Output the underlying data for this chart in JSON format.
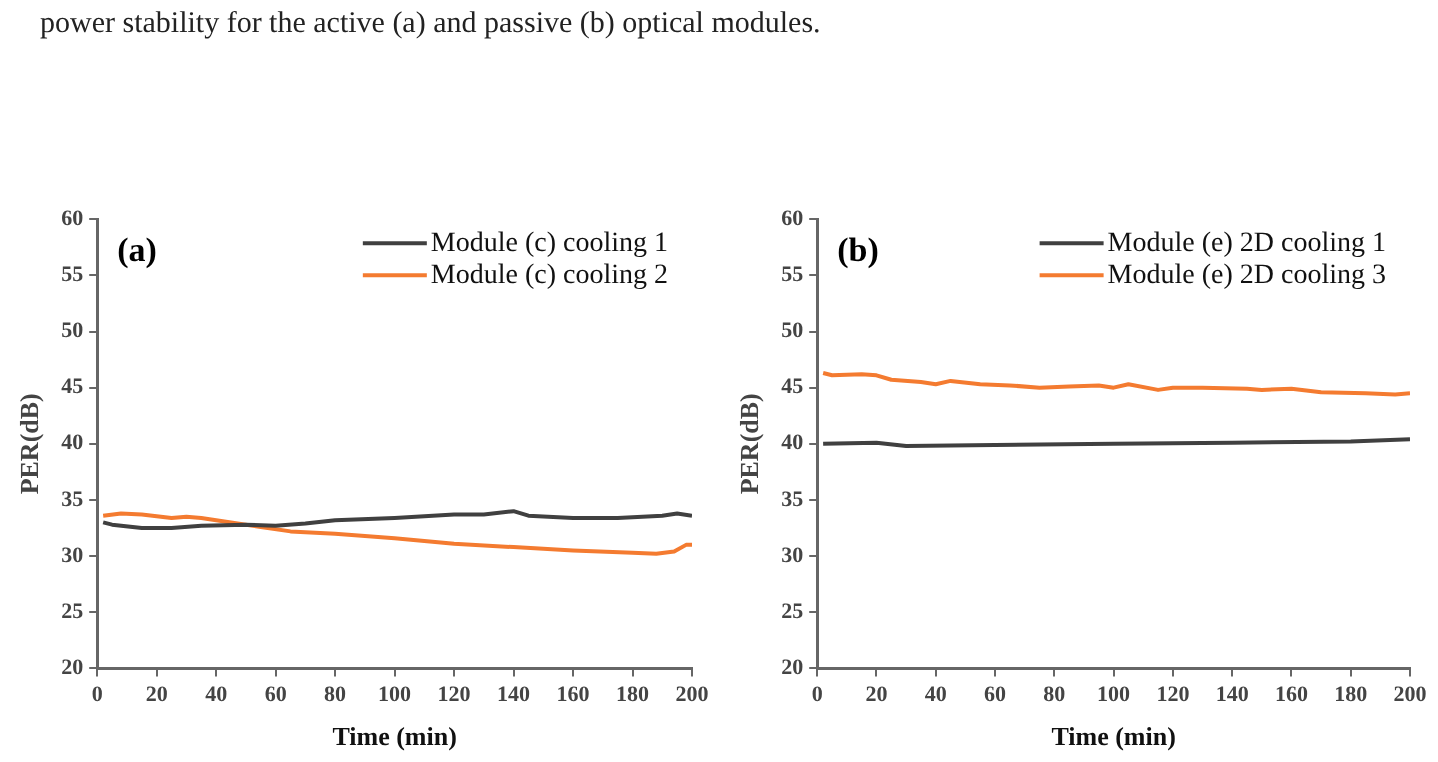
{
  "chart_data": [
    {
      "type": "line",
      "title": "(a)",
      "xlabel": "Time (min)",
      "ylabel": "PER(dB)",
      "annotations": [
        "power stability for the active (a) and passive (b) optical modules."
      ],
      "xlim": [
        0,
        200
      ],
      "xticks": [
        0,
        20,
        40,
        60,
        80,
        100,
        120,
        140,
        160,
        180,
        200
      ],
      "ylim": [
        20,
        60
      ],
      "yticks": [
        20,
        25,
        30,
        35,
        40,
        45,
        50,
        55,
        60
      ],
      "grid": false,
      "legend": "top right",
      "marker": "none",
      "line_style": "solid",
      "series": [
        {
          "name": "Module (c) cooling 1",
          "color": "#404040",
          "x": [
            2,
            5,
            15,
            25,
            35,
            50,
            60,
            70,
            80,
            100,
            120,
            130,
            140,
            145,
            160,
            175,
            190,
            195,
            200
          ],
          "values": [
            33,
            32.8,
            32.5,
            32.5,
            32.7,
            32.8,
            32.7,
            32.9,
            33.2,
            33.4,
            33.7,
            33.7,
            34,
            33.6,
            33.4,
            33.4,
            33.6,
            33.8,
            33.6
          ]
        },
        {
          "name": "Module (c) cooling 2",
          "color": "#f47b30",
          "x": [
            2,
            8,
            15,
            25,
            30,
            35,
            45,
            55,
            65,
            80,
            100,
            120,
            140,
            160,
            180,
            188,
            194,
            198,
            200
          ],
          "values": [
            33.6,
            33.8,
            33.7,
            33.4,
            33.5,
            33.4,
            33,
            32.6,
            32.2,
            32,
            31.6,
            31.1,
            30.8,
            30.5,
            30.3,
            30.2,
            30.4,
            31,
            31
          ]
        }
      ]
    },
    {
      "type": "line",
      "title": "(b)",
      "xlabel": "Time (min)",
      "ylabel": "PER(dB)",
      "xlim": [
        0,
        200
      ],
      "xticks": [
        0,
        20,
        40,
        60,
        80,
        100,
        120,
        140,
        160,
        180,
        200
      ],
      "ylim": [
        20,
        60
      ],
      "yticks": [
        20,
        25,
        30,
        35,
        40,
        45,
        50,
        55,
        60
      ],
      "grid": false,
      "legend": "top right",
      "marker": "none",
      "line_style": "solid",
      "series": [
        {
          "name": "Module (e) 2D cooling 1",
          "color": "#404040",
          "x": [
            2,
            20,
            30,
            60,
            100,
            140,
            180,
            200
          ],
          "values": [
            40,
            40.1,
            39.8,
            39.9,
            40,
            40.1,
            40.2,
            40.4
          ]
        },
        {
          "name": "Module (e) 2D cooling 3",
          "color": "#f47b30",
          "x": [
            2,
            5,
            15,
            20,
            25,
            35,
            40,
            45,
            55,
            65,
            75,
            85,
            95,
            100,
            105,
            115,
            120,
            130,
            145,
            150,
            160,
            170,
            185,
            195,
            200
          ],
          "values": [
            46.3,
            46.1,
            46.2,
            46.1,
            45.7,
            45.5,
            45.3,
            45.6,
            45.3,
            45.2,
            45,
            45.1,
            45.2,
            45,
            45.3,
            44.8,
            45,
            45,
            44.9,
            44.8,
            44.9,
            44.6,
            44.5,
            44.4,
            44.5
          ]
        }
      ]
    }
  ]
}
